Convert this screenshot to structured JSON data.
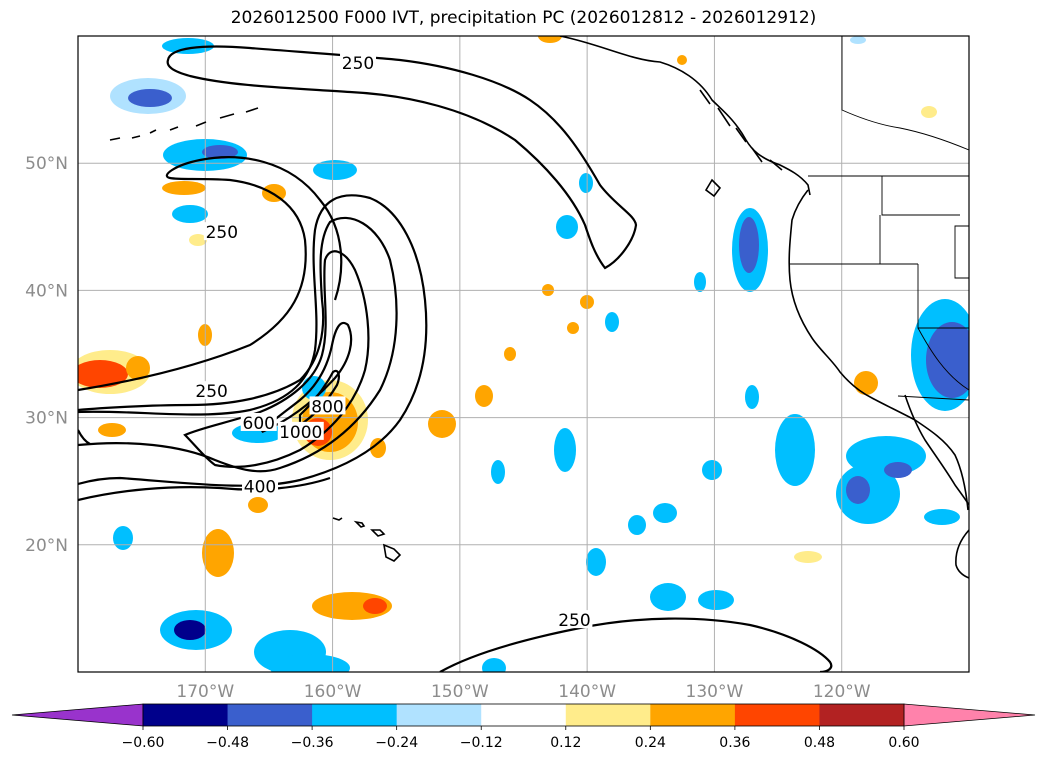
{
  "title": "2026012500 F000 IVT, precipitation PC (2026012812 - 2026012912)",
  "colors": {
    "land_line": "#000000",
    "grid": "#b0b0b0",
    "axis_label": "#8c8c8c"
  },
  "chart_data": {
    "type": "heatmap",
    "projection": "PlateCarree",
    "lon_range": [
      -180,
      -110
    ],
    "lat_range": [
      10,
      60
    ],
    "lat_ticks": [
      {
        "value": 20,
        "label": "20°N"
      },
      {
        "value": 30,
        "label": "30°N"
      },
      {
        "value": 40,
        "label": "40°N"
      },
      {
        "value": 50,
        "label": "50°N"
      }
    ],
    "lon_ticks": [
      {
        "value": -170,
        "label": "170°W"
      },
      {
        "value": -160,
        "label": "160°W"
      },
      {
        "value": -150,
        "label": "150°W"
      },
      {
        "value": -140,
        "label": "140°W"
      },
      {
        "value": -130,
        "label": "130°W"
      },
      {
        "value": -120,
        "label": "120°W"
      }
    ],
    "ivt_contour_labels": [
      {
        "text": "250",
        "lon": -158,
        "lat": 57.8
      },
      {
        "text": "250",
        "lon": -168.7,
        "lat": 44.5
      },
      {
        "text": "250",
        "lon": -169.5,
        "lat": 32.0
      },
      {
        "text": "600",
        "lon": -165.8,
        "lat": 29.5
      },
      {
        "text": "1000",
        "lon": -162.5,
        "lat": 28.8
      },
      {
        "text": "800",
        "lon": -160.4,
        "lat": 30.8
      },
      {
        "text": "400",
        "lon": -165.7,
        "lat": 24.5
      },
      {
        "text": "250",
        "lon": -141.0,
        "lat": 14.0
      }
    ],
    "colorbar": {
      "levels": [
        "−0.60",
        "−0.48",
        "−0.36",
        "−0.24",
        "−0.12",
        "0.12",
        "0.24",
        "0.36",
        "0.48",
        "0.60"
      ],
      "colors": [
        "#9933cc",
        "#00008b",
        "#3a5fcd",
        "#00bfff",
        "#b0e2ff",
        "#ffffff",
        "#ffec8b",
        "#ffa500",
        "#ff4500",
        "#b22222",
        "#ff82ab"
      ],
      "extend": "both"
    }
  }
}
